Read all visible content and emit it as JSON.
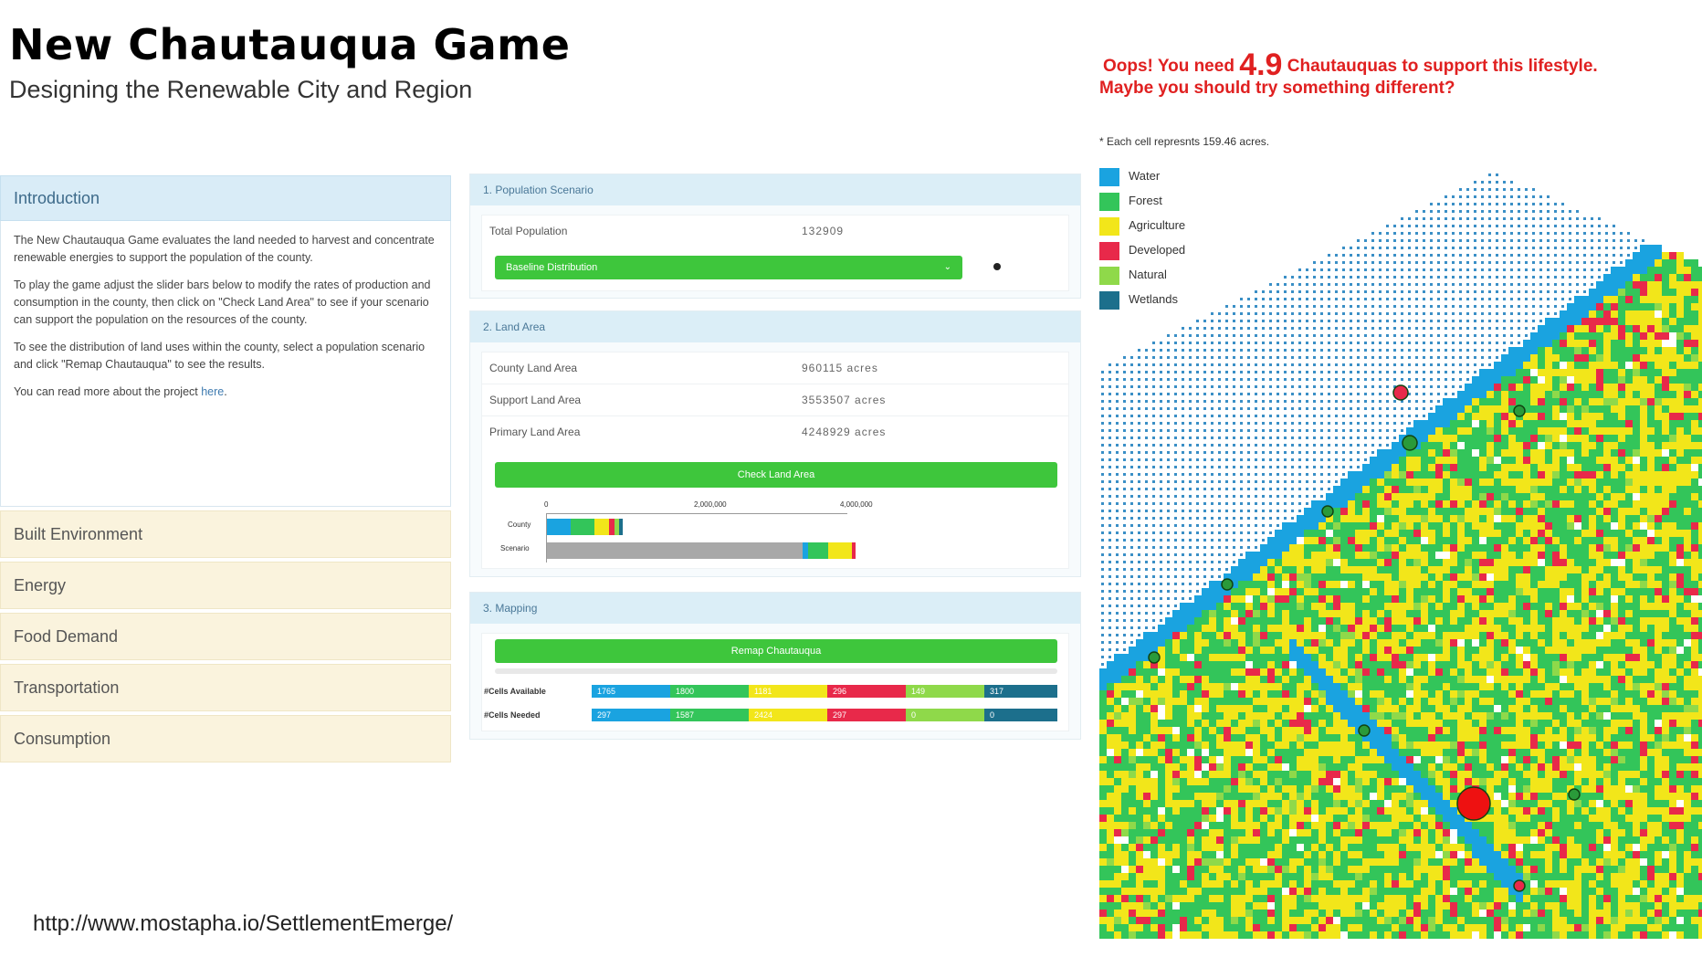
{
  "header": {
    "title": "New Chautauqua Game",
    "subtitle": "Designing the Renewable City and Region"
  },
  "footer_url": "http://www.mostapha.io/SettlementEmerge/",
  "accordion": {
    "intro_title": "Introduction",
    "intro_paragraphs": [
      "The New Chautauqua Game evaluates the land needed to harvest and concentrate renewable energies to support the population of the county.",
      "To play the game adjust the slider bars below to modify the rates of production and consumption in the county, then click on \"Check Land Area\" to see if your scenario can support the population on the resources of the county.",
      "To see the distribution of land uses within the county, select a population scenario and click \"Remap Chautauqua\" to see the results."
    ],
    "read_more_prefix": "You can read more about the project ",
    "read_more_link": "here",
    "read_more_suffix": ".",
    "items": [
      "Built Environment",
      "Energy",
      "Food Demand",
      "Transportation",
      "Consumption"
    ]
  },
  "population": {
    "heading": "1. Population Scenario",
    "label": "Total Population",
    "value": "132909",
    "select_value": "Baseline Distribution"
  },
  "land": {
    "heading": "2. Land Area",
    "rows": [
      {
        "label": "County Land Area",
        "value": "960115 acres"
      },
      {
        "label": "Support Land Area",
        "value": "3553507 acres"
      },
      {
        "label": "Primary Land Area",
        "value": "4248929 acres"
      }
    ],
    "button": "Check Land Area",
    "chart_ticks": [
      "0",
      "2,000,000",
      "4,000,000"
    ],
    "chart_rows": [
      "County",
      "Scenario"
    ]
  },
  "mapping": {
    "heading": "3. Mapping",
    "button": "Remap Chautauqua",
    "available_label": "#Cells Available",
    "needed_label": "#Cells Needed",
    "available": [
      "1765",
      "1800",
      "1181",
      "296",
      "149",
      "317"
    ],
    "needed": [
      "297",
      "1587",
      "2424",
      "297",
      "0",
      "0"
    ]
  },
  "warning": {
    "prefix": "Oops! You need ",
    "number": "4.9",
    "suffix": " Chautauquas to support this lifestyle.",
    "line2": "Maybe you should try something different?"
  },
  "cell_note": "* Each cell represnts 159.46 acres.",
  "legend": [
    {
      "label": "Water",
      "color": "#1aa3e0"
    },
    {
      "label": "Forest",
      "color": "#33c55a"
    },
    {
      "label": "Agriculture",
      "color": "#f2e61a"
    },
    {
      "label": "Developed",
      "color": "#e8294a"
    },
    {
      "label": "Natural",
      "color": "#8fd94a"
    },
    {
      "label": "Wetlands",
      "color": "#1c6f8c"
    }
  ]
}
